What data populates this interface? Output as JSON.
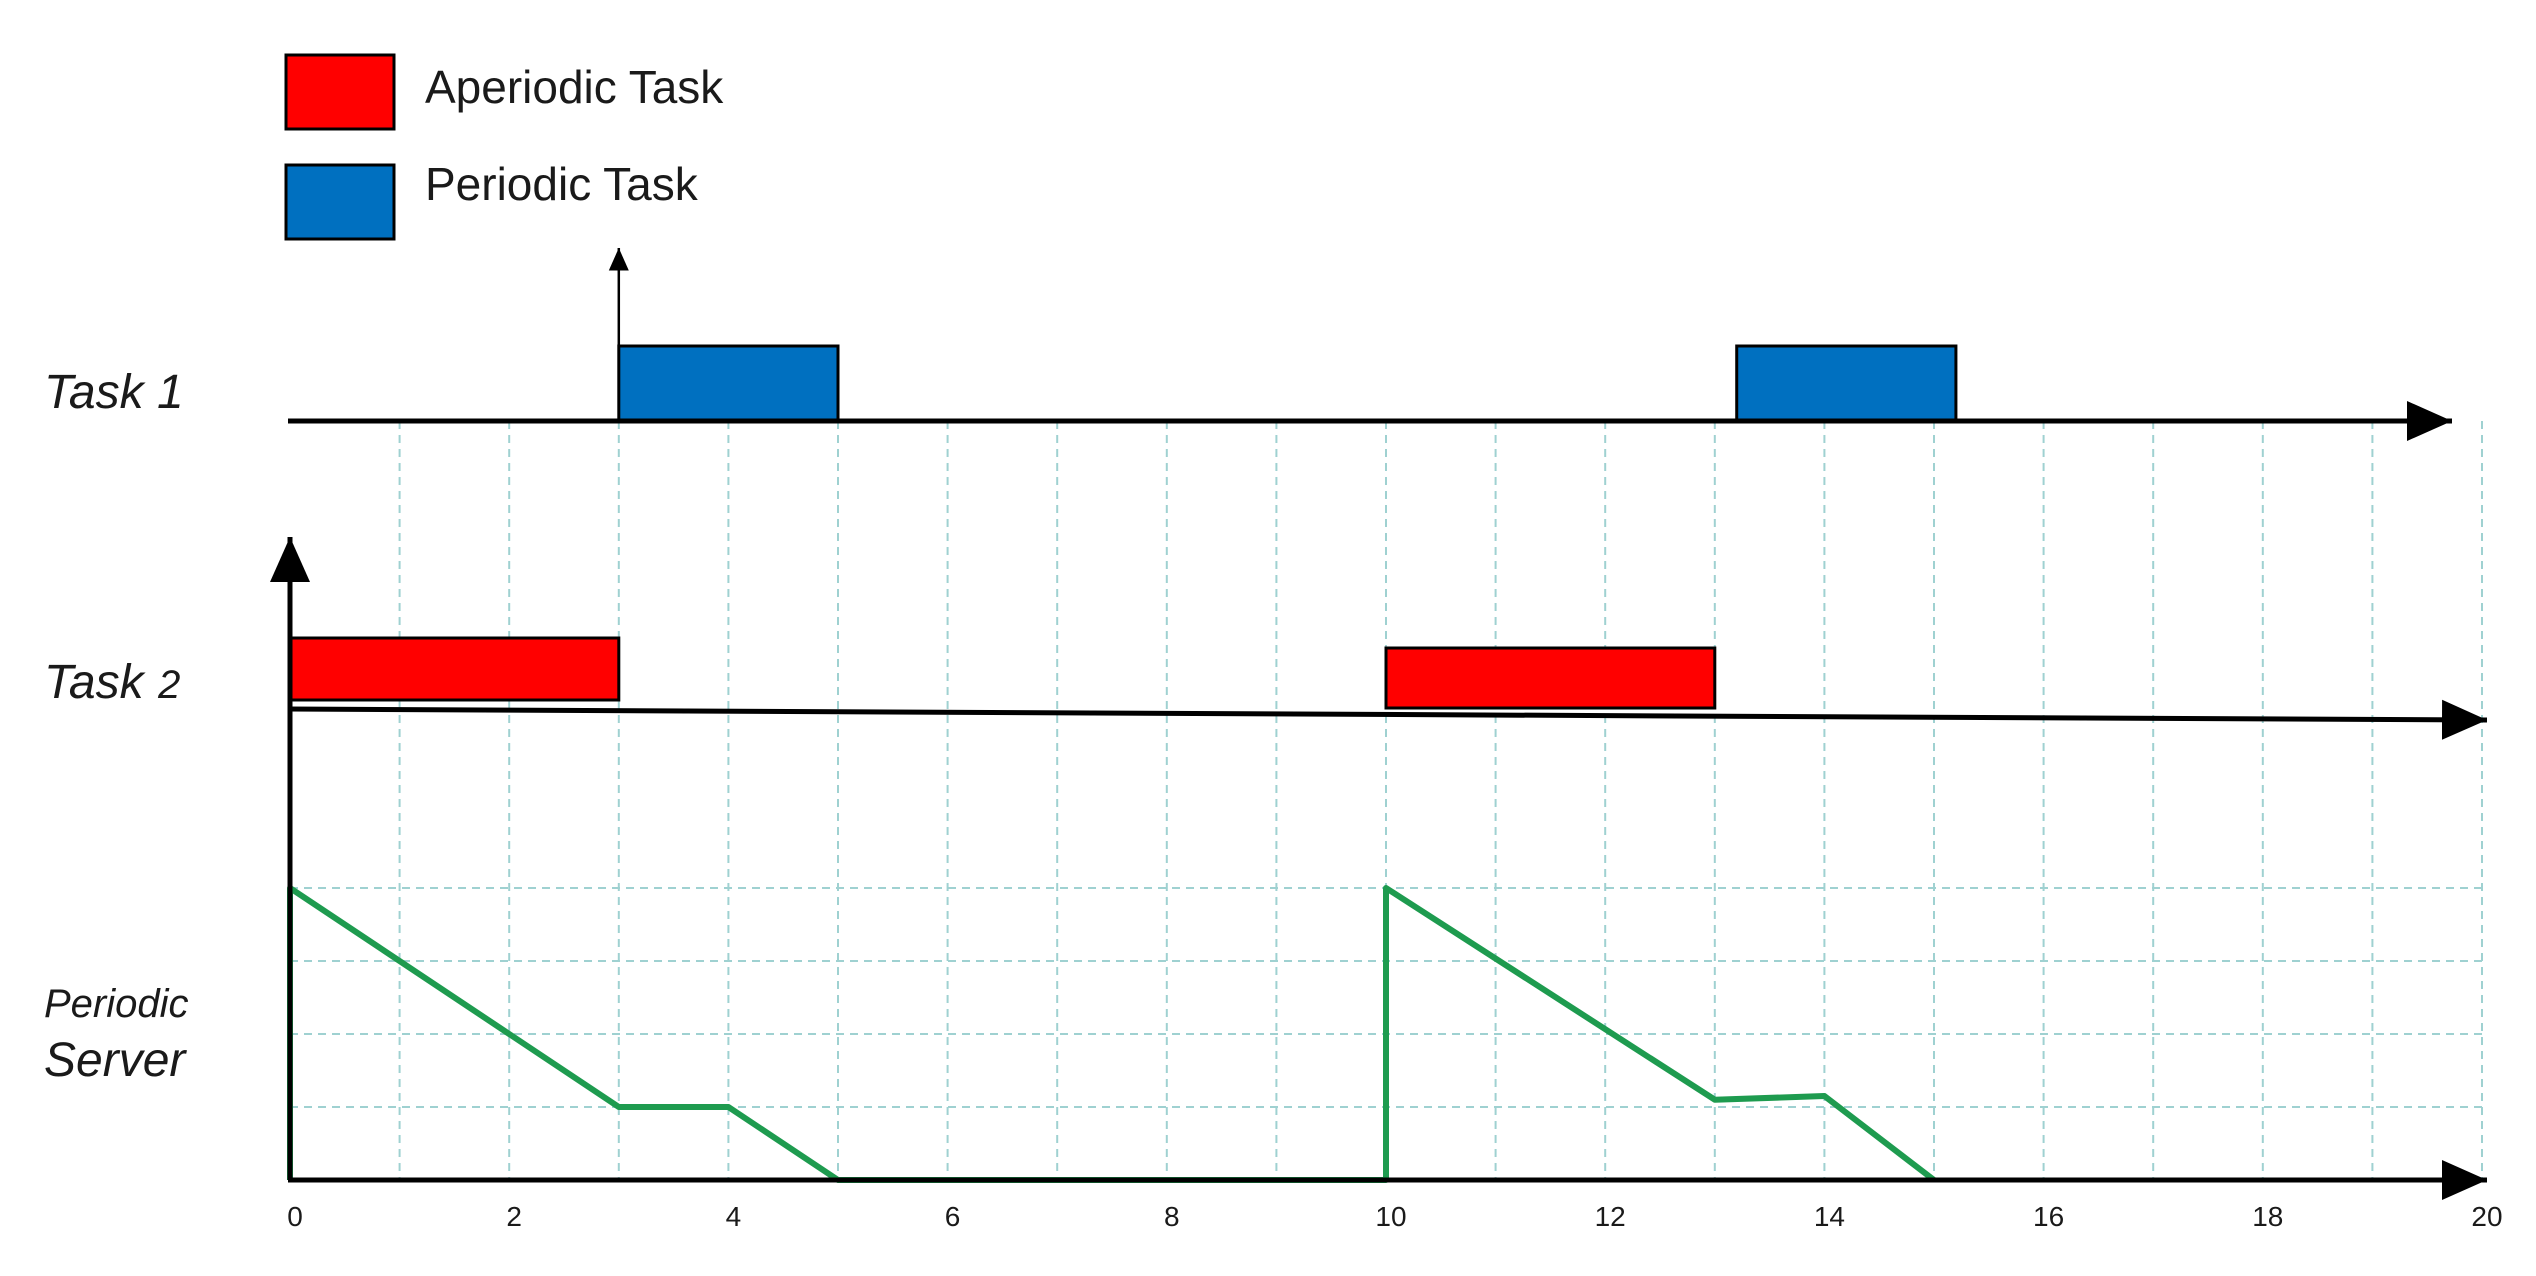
{
  "legend": [
    {
      "label": "Aperiodic Task",
      "color": "#ff0000"
    },
    {
      "label": "Periodic Task",
      "color": "#0070c0"
    }
  ],
  "rows": {
    "task1": {
      "label": "Task 1"
    },
    "task2": {
      "label_main": "Task",
      "label_num": "2"
    },
    "server": {
      "label_line1": "Periodic",
      "label_line2": "Server"
    }
  },
  "colors": {
    "aperiodic": "#ff0000",
    "periodic": "#0070c0",
    "server": "#1e9b4f",
    "grid": "#9fd1d1",
    "axis": "#000000"
  },
  "chart_data": {
    "type": "timeline",
    "x_range": [
      0,
      20
    ],
    "x_ticks": [
      0,
      2,
      4,
      6,
      8,
      10,
      12,
      14,
      16,
      18,
      20
    ],
    "task1_blocks": [
      {
        "start": 3,
        "end": 5,
        "type": "periodic"
      },
      {
        "start": 13.2,
        "end": 15.2,
        "type": "periodic"
      }
    ],
    "task1_release_arrows": [
      3
    ],
    "task2_blocks": [
      {
        "start": 0,
        "end": 3,
        "type": "aperiodic"
      },
      {
        "start": 10,
        "end": 13,
        "type": "aperiodic"
      }
    ],
    "server_capacity": {
      "y_range": [
        0,
        4
      ],
      "points": [
        [
          0,
          0
        ],
        [
          0,
          4
        ],
        [
          3,
          1
        ],
        [
          4,
          1
        ],
        [
          5,
          0
        ],
        [
          10,
          0
        ],
        [
          10,
          4
        ],
        [
          13,
          1.1
        ],
        [
          14,
          1.15
        ],
        [
          15,
          0
        ]
      ]
    }
  }
}
